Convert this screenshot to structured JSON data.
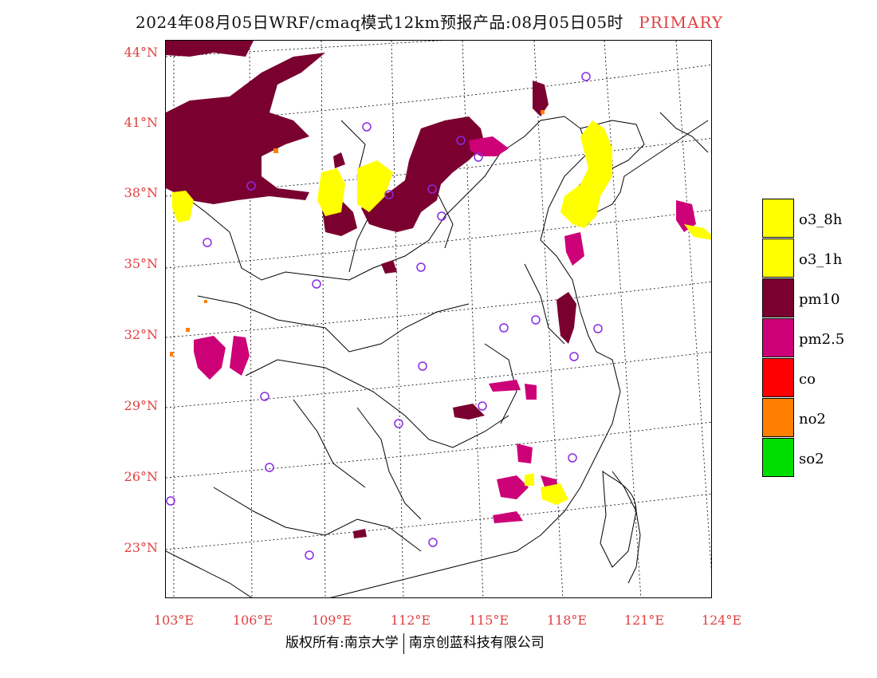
{
  "header": {
    "title": "2024年08月05日WRF/cmaq模式12km预报产品:08月05日05时",
    "tag": "PRIMARY"
  },
  "axes": {
    "lat_labels": [
      "44°N",
      "41°N",
      "38°N",
      "35°N",
      "32°N",
      "29°N",
      "26°N",
      "23°N"
    ],
    "lon_labels": [
      "103°E",
      "106°E",
      "109°E",
      "112°E",
      "115°E",
      "118°E",
      "121°E",
      "124°E"
    ]
  },
  "legend": {
    "items": [
      {
        "label": "o3_8h",
        "color": "#ffff00"
      },
      {
        "label": "o3_1h",
        "color": "#ffff00"
      },
      {
        "label": "pm10",
        "color": "#7a0030"
      },
      {
        "label": "pm2.5",
        "color": "#cc0077"
      },
      {
        "label": "co",
        "color": "#ff0000"
      },
      {
        "label": "no2",
        "color": "#ff7f00"
      },
      {
        "label": "so2",
        "color": "#00dd00"
      }
    ]
  },
  "footer": {
    "left": "版权所有:南京大学",
    "right": "南京创蓝科技有限公司"
  },
  "colors": {
    "axis_label": "#e04040",
    "station_marker": "#8a2be2",
    "border": "#000000"
  }
}
